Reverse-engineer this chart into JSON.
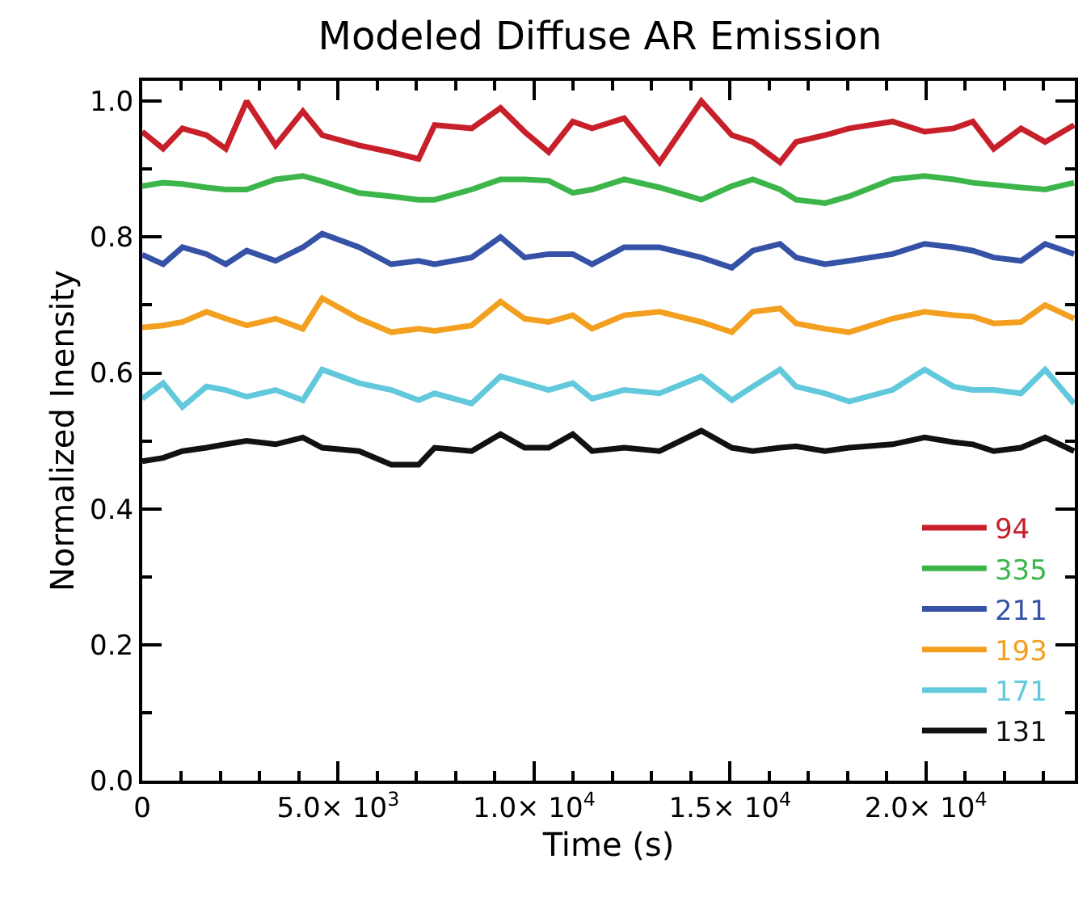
{
  "chart_data": {
    "type": "line",
    "title": "Modeled Diffuse AR Emission",
    "xlabel": "Time (s)",
    "ylabel": "Normalized Inensity",
    "x": [
      0,
      533,
      1025,
      1640,
      2132,
      2665,
      3403,
      4100,
      4592,
      5535,
      6355,
      7052,
      7462,
      8405,
      9143,
      9758,
      10373,
      10988,
      11480,
      12300,
      13202,
      14268,
      15047,
      15580,
      16277,
      16687,
      17425,
      18040,
      19147,
      19967,
      20705,
      21197,
      21730,
      22427,
      23042,
      23780
    ],
    "xlim": [
      0,
      23800
    ],
    "ylim": [
      0,
      1.03
    ],
    "xticks": [
      0,
      {
        "value": 5000,
        "label": "5.0× 10$^{3}$"
      },
      {
        "value": 10000,
        "label": "1.0× 10$^{4}$"
      },
      {
        "value": 15000,
        "label": "1.5× 10$^{4}$"
      },
      {
        "value": 20000,
        "label": "2.0× 10$^{4}$"
      }
    ],
    "yticks": [
      {
        "value": 0,
        "label": "0.0"
      },
      0.2,
      0.4,
      0.6,
      0.8,
      {
        "value": 1,
        "label": "1.0"
      }
    ],
    "legend": "bottom right",
    "marker": "none",
    "line_style": "solid",
    "series": [
      {
        "name": "94",
        "color": "#c8202a",
        "values": [
          0.955,
          0.93,
          0.96,
          0.95,
          0.93,
          1.0,
          0.935,
          0.985,
          0.95,
          0.935,
          0.925,
          0.915,
          0.965,
          0.96,
          0.99,
          0.955,
          0.925,
          0.97,
          0.96,
          0.975,
          0.91,
          1.0,
          0.95,
          0.94,
          0.91,
          0.94,
          0.95,
          0.96,
          0.97,
          0.955,
          0.96,
          0.97,
          0.93,
          0.96,
          0.94,
          0.965
        ]
      },
      {
        "name": "335",
        "color": "#3cb54a",
        "values": [
          0.875,
          0.88,
          0.878,
          0.873,
          0.87,
          0.87,
          0.885,
          0.89,
          0.882,
          0.865,
          0.86,
          0.855,
          0.855,
          0.87,
          0.885,
          0.885,
          0.883,
          0.865,
          0.87,
          0.885,
          0.873,
          0.855,
          0.875,
          0.885,
          0.87,
          0.855,
          0.85,
          0.86,
          0.885,
          0.89,
          0.885,
          0.88,
          0.877,
          0.873,
          0.87,
          0.88
        ]
      },
      {
        "name": "211",
        "color": "#3552a6",
        "values": [
          0.774,
          0.76,
          0.785,
          0.775,
          0.76,
          0.78,
          0.765,
          0.785,
          0.805,
          0.785,
          0.76,
          0.765,
          0.76,
          0.77,
          0.8,
          0.77,
          0.775,
          0.775,
          0.76,
          0.785,
          0.785,
          0.77,
          0.755,
          0.78,
          0.79,
          0.77,
          0.76,
          0.765,
          0.775,
          0.79,
          0.785,
          0.78,
          0.77,
          0.765,
          0.79,
          0.775
        ]
      },
      {
        "name": "193",
        "color": "#f3a020",
        "values": [
          0.667,
          0.67,
          0.675,
          0.69,
          0.68,
          0.67,
          0.68,
          0.665,
          0.71,
          0.68,
          0.66,
          0.665,
          0.662,
          0.67,
          0.705,
          0.68,
          0.675,
          0.685,
          0.665,
          0.685,
          0.69,
          0.675,
          0.66,
          0.69,
          0.695,
          0.673,
          0.665,
          0.66,
          0.68,
          0.69,
          0.685,
          0.683,
          0.673,
          0.675,
          0.7,
          0.68
        ]
      },
      {
        "name": "171",
        "color": "#62c9dc",
        "values": [
          0.562,
          0.585,
          0.55,
          0.58,
          0.575,
          0.565,
          0.575,
          0.56,
          0.605,
          0.585,
          0.575,
          0.56,
          0.57,
          0.555,
          0.595,
          0.585,
          0.575,
          0.585,
          0.562,
          0.575,
          0.57,
          0.595,
          0.56,
          0.58,
          0.605,
          0.58,
          0.57,
          0.558,
          0.575,
          0.605,
          0.58,
          0.575,
          0.575,
          0.57,
          0.605,
          0.555
        ]
      },
      {
        "name": "131",
        "color": "#111111",
        "values": [
          0.47,
          0.475,
          0.485,
          0.49,
          0.495,
          0.5,
          0.495,
          0.505,
          0.49,
          0.485,
          0.465,
          0.465,
          0.49,
          0.485,
          0.51,
          0.49,
          0.49,
          0.51,
          0.485,
          0.49,
          0.485,
          0.515,
          0.49,
          0.485,
          0.49,
          0.492,
          0.485,
          0.49,
          0.495,
          0.505,
          0.498,
          0.495,
          0.485,
          0.49,
          0.505,
          0.485
        ]
      }
    ]
  }
}
